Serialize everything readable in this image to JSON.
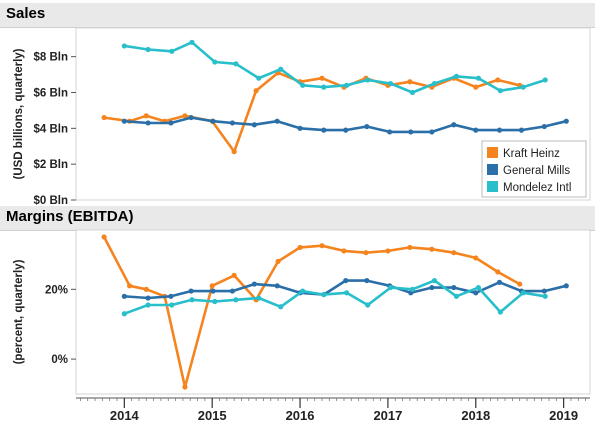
{
  "chart_data": {
    "type": "line",
    "x_axis": {
      "ticks": [
        "2014",
        "2015",
        "2016",
        "2017",
        "2018",
        "2019"
      ],
      "range": [
        2013.45,
        2019.3
      ]
    },
    "legend": {
      "placement": "bottom-right of Sales panel",
      "entries": [
        "Kraft Heinz",
        "General Mills",
        "Mondelez Intl"
      ]
    },
    "colors": {
      "Kraft Heinz": "#f5841f",
      "General Mills": "#2a6fa8",
      "Mondelez Intl": "#28bfcb",
      "header_background": "#e9e9e9"
    },
    "panels": [
      {
        "id": "sales",
        "title": "Sales",
        "ylabel": "(USD billions, quarterly)",
        "ylim": [
          0,
          9.6
        ],
        "yticks": [
          {
            "value": 8,
            "label": "$8 Bln"
          },
          {
            "value": 6,
            "label": "$6 Bln"
          },
          {
            "value": 4,
            "label": "$4 Bln"
          },
          {
            "value": 2,
            "label": "$2 Bln"
          },
          {
            "value": 0,
            "label": "$0 Bln"
          }
        ],
        "series": [
          {
            "name": "Kraft Heinz",
            "x": [
              2013.77,
              2014.06,
              2014.25,
              2014.46,
              2014.69,
              2015.0,
              2015.25,
              2015.5,
              2015.75,
              2016.0,
              2016.25,
              2016.5,
              2016.75,
              2017.0,
              2017.25,
              2017.5,
              2017.75,
              2018.0,
              2018.25,
              2018.5
            ],
            "y": [
              4.6,
              4.4,
              4.7,
              4.4,
              4.7,
              4.4,
              2.7,
              6.1,
              7.1,
              6.6,
              6.8,
              6.3,
              6.8,
              6.4,
              6.6,
              6.3,
              6.8,
              6.3,
              6.7,
              6.4
            ]
          },
          {
            "name": "General Mills",
            "x": [
              2014.0,
              2014.27,
              2014.53,
              2014.76,
              2015.01,
              2015.23,
              2015.48,
              2015.74,
              2016.0,
              2016.27,
              2016.52,
              2016.76,
              2017.02,
              2017.26,
              2017.5,
              2017.75,
              2018.0,
              2018.27,
              2018.52,
              2018.78,
              2019.03
            ],
            "y": [
              4.4,
              4.3,
              4.3,
              4.6,
              4.4,
              4.3,
              4.2,
              4.4,
              4.0,
              3.9,
              3.9,
              4.1,
              3.8,
              3.8,
              3.8,
              4.2,
              3.9,
              3.9,
              3.9,
              4.1,
              4.4
            ]
          },
          {
            "name": "Mondelez Intl",
            "x": [
              2014.0,
              2014.27,
              2014.54,
              2014.77,
              2015.03,
              2015.27,
              2015.53,
              2015.78,
              2016.03,
              2016.27,
              2016.53,
              2016.77,
              2017.03,
              2017.28,
              2017.53,
              2017.78,
              2018.03,
              2018.28,
              2018.54,
              2018.79
            ],
            "y": [
              8.6,
              8.4,
              8.3,
              8.8,
              7.7,
              7.6,
              6.8,
              7.3,
              6.4,
              6.3,
              6.4,
              6.7,
              6.5,
              6.0,
              6.5,
              6.9,
              6.8,
              6.1,
              6.3,
              6.7
            ]
          }
        ]
      },
      {
        "id": "margins",
        "title": "Margins (EBITDA)",
        "ylabel": "(percent, quarterly)",
        "ylim": [
          -10,
          37
        ],
        "yticks": [
          {
            "value": 20,
            "label": "20%"
          },
          {
            "value": 0,
            "label": "0%"
          }
        ],
        "series": [
          {
            "name": "Kraft Heinz",
            "x": [
              2013.77,
              2014.06,
              2014.25,
              2014.46,
              2014.69,
              2015.0,
              2015.25,
              2015.5,
              2015.75,
              2016.0,
              2016.25,
              2016.5,
              2016.75,
              2017.0,
              2017.25,
              2017.5,
              2017.75,
              2018.0,
              2018.25,
              2018.5
            ],
            "y": [
              35,
              21,
              20,
              18,
              -8,
              21,
              24,
              17,
              28,
              32,
              32.5,
              31,
              30.5,
              31,
              32,
              31.5,
              30.5,
              29,
              25,
              21.5
            ]
          },
          {
            "name": "General Mills",
            "x": [
              2014.0,
              2014.27,
              2014.53,
              2014.76,
              2015.01,
              2015.23,
              2015.48,
              2015.74,
              2016.0,
              2016.27,
              2016.52,
              2016.76,
              2017.02,
              2017.26,
              2017.5,
              2017.75,
              2018.0,
              2018.27,
              2018.52,
              2018.78,
              2019.03
            ],
            "y": [
              18,
              17.5,
              18,
              19.5,
              19.5,
              19.5,
              21.5,
              21,
              19,
              18.5,
              22.5,
              22.5,
              21,
              19,
              20.5,
              20.5,
              19,
              22,
              19.5,
              19.5,
              21
            ]
          },
          {
            "name": "Mondelez Intl",
            "x": [
              2014.0,
              2014.27,
              2014.54,
              2014.77,
              2015.03,
              2015.27,
              2015.53,
              2015.78,
              2016.03,
              2016.27,
              2016.53,
              2016.77,
              2017.03,
              2017.28,
              2017.53,
              2017.78,
              2018.03,
              2018.28,
              2018.54,
              2018.79
            ],
            "y": [
              13,
              15.5,
              15.5,
              17,
              16.5,
              17,
              17.5,
              15,
              19.5,
              18.5,
              19,
              15.5,
              20.5,
              20,
              22.5,
              18,
              20.5,
              13.5,
              19,
              18
            ]
          }
        ]
      }
    ]
  }
}
